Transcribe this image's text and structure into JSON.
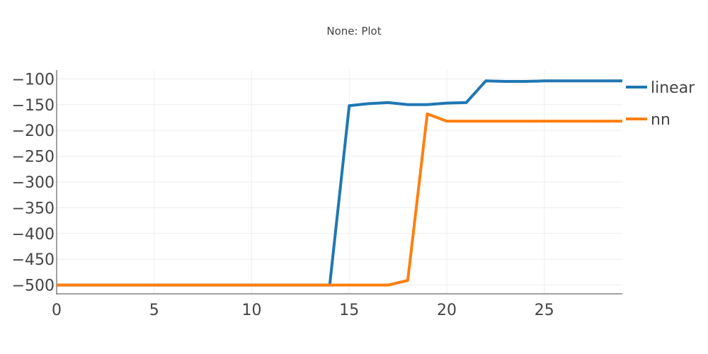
{
  "chart_data": {
    "type": "line",
    "title": "None: Plot",
    "xlabel": "",
    "ylabel": "",
    "xlim": [
      0,
      29
    ],
    "ylim": [
      -517,
      -83
    ],
    "grid": true,
    "legend_position": "top-right",
    "x_ticks": [
      0,
      5,
      10,
      15,
      20,
      25
    ],
    "x_tick_labels": [
      "0",
      "5",
      "10",
      "15",
      "20",
      "25"
    ],
    "y_ticks": [
      -100,
      -150,
      -200,
      -250,
      -300,
      -350,
      -400,
      -450,
      -500
    ],
    "y_tick_labels": [
      "−100",
      "−150",
      "−200",
      "−250",
      "−300",
      "−350",
      "−400",
      "−450",
      "−500"
    ],
    "x": [
      0,
      1,
      2,
      3,
      4,
      5,
      6,
      7,
      8,
      9,
      10,
      11,
      12,
      13,
      14,
      15,
      16,
      17,
      18,
      19,
      20,
      21,
      22,
      23,
      24,
      25,
      26,
      27,
      28,
      29
    ],
    "series": [
      {
        "name": "linear",
        "color": "#1f77b4",
        "values": [
          -500,
          -500,
          -500,
          -500,
          -500,
          -500,
          -500,
          -500,
          -500,
          -500,
          -500,
          -500,
          -500,
          -500,
          -500,
          -152,
          -148,
          -146,
          -150,
          -150,
          -147,
          -146,
          -104,
          -105,
          -105,
          -104,
          -104,
          -104,
          -104,
          -104
        ]
      },
      {
        "name": "nn",
        "color": "#ff7f0e",
        "values": [
          -500,
          -500,
          -500,
          -500,
          -500,
          -500,
          -500,
          -500,
          -500,
          -500,
          -500,
          -500,
          -500,
          -500,
          -500,
          -500,
          -500,
          -500,
          -491,
          -168,
          -182,
          -182,
          -182,
          -182,
          -182,
          -182,
          -182,
          -182,
          -182,
          -182
        ]
      }
    ]
  }
}
